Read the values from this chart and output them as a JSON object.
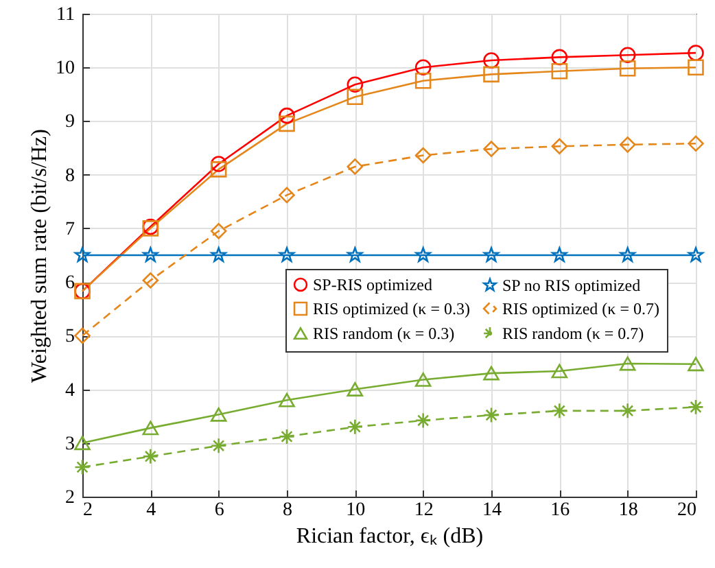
{
  "chart_data": {
    "type": "line",
    "xlabel": "Rician factor, ϵₖ (dB)",
    "ylabel": "Weighted sum rate (bit/s/Hz)",
    "x": [
      2,
      4,
      6,
      8,
      10,
      12,
      14,
      16,
      18,
      20
    ],
    "series": [
      {
        "name": "SP-RIS optimized",
        "color": "#ff0000",
        "marker": "circle",
        "line_style": "solid",
        "values": [
          5.83,
          7.03,
          8.2,
          9.1,
          9.68,
          10.0,
          10.13,
          10.19,
          10.23,
          10.27
        ]
      },
      {
        "name": "RIS optimized (κ = 0.3)",
        "color": "#e5861a",
        "marker": "square",
        "line_style": "solid",
        "values": [
          5.83,
          7.0,
          8.1,
          8.95,
          9.45,
          9.75,
          9.87,
          9.93,
          9.98,
          10.0
        ]
      },
      {
        "name": "RIS random (κ = 0.3)",
        "color": "#77ac30",
        "marker": "triangle",
        "line_style": "solid",
        "values": [
          3.0,
          3.28,
          3.53,
          3.8,
          4.0,
          4.18,
          4.3,
          4.34,
          4.48,
          4.47
        ]
      },
      {
        "name": "SP no RIS optimized",
        "color": "#0072bd",
        "marker": "star",
        "line_style": "solid",
        "values": [
          6.5,
          6.5,
          6.5,
          6.5,
          6.5,
          6.5,
          6.5,
          6.5,
          6.5,
          6.5
        ]
      },
      {
        "name": "RIS optimized (κ = 0.7)",
        "color": "#e5861a",
        "marker": "diamond",
        "line_style": "dashed",
        "values": [
          5.0,
          6.03,
          6.95,
          7.62,
          8.15,
          8.36,
          8.48,
          8.53,
          8.56,
          8.58
        ]
      },
      {
        "name": "RIS random (κ = 0.7)",
        "color": "#77ac30",
        "marker": "cross",
        "line_style": "dashed",
        "values": [
          2.55,
          2.75,
          2.95,
          3.12,
          3.3,
          3.42,
          3.52,
          3.6,
          3.6,
          3.67
        ]
      }
    ],
    "xlim": [
      2,
      20
    ],
    "xticks": [
      2,
      4,
      6,
      8,
      10,
      12,
      14,
      16,
      18,
      20
    ],
    "ylim": [
      2,
      11
    ],
    "yticks": [
      2,
      3,
      4,
      5,
      6,
      7,
      8,
      9,
      10,
      11
    ],
    "grid": true,
    "legend": "right"
  }
}
